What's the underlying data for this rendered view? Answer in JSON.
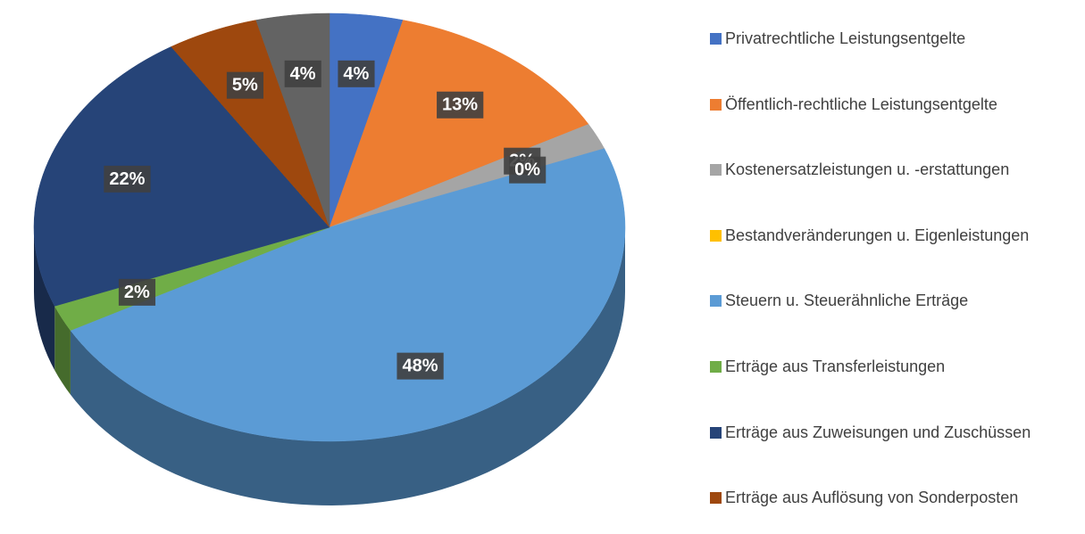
{
  "chart_data": {
    "type": "pie",
    "categories": [
      "Privatrechtliche Leistungsentgelte",
      "Öffentlich-rechtliche Leistungsentgelte",
      "Kostenersatzleistungen u. -erstattungen",
      "Bestandveränderungen u. Eigenleistungen",
      "Steuern u. Steuerähnliche Erträge",
      "Erträge aus Transferleistungen",
      "Erträge aus Zuweisungen und Zuschüssen",
      "Erträge aus Auflösung von Sonderposten",
      null
    ],
    "values": [
      4,
      13,
      2,
      0,
      48,
      2,
      22,
      5,
      4
    ],
    "value_labels": [
      "4%",
      "13%",
      "2%",
      "0%",
      "48%",
      "2%",
      "22%",
      "5%",
      "4%"
    ],
    "colors": [
      "#4472c4",
      "#ed7d31",
      "#a5a5a5",
      "#ffc000",
      "#5b9bd5",
      "#70ad47",
      "#264478",
      "#9e480e",
      "#636363"
    ],
    "legend": "right"
  }
}
